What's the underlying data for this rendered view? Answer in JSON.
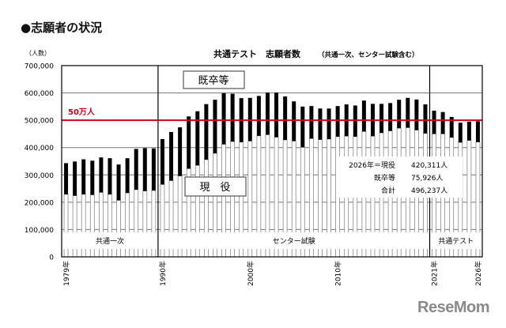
{
  "heading": "●志願者の状況",
  "logo_text": "ReseMom",
  "chart_data": {
    "type": "bar",
    "stacked": true,
    "title": "共通テスト　志願者数",
    "subtitle": "（共通一次、センター試験含む）",
    "ylabel": "（人数）",
    "ylim": [
      0,
      700000
    ],
    "yticks": [
      "0",
      "100,000",
      "200,000",
      "300,000",
      "400,000",
      "500,000",
      "600,000",
      "700,000"
    ],
    "grid": true,
    "years": [
      1979,
      1980,
      1981,
      1982,
      1983,
      1984,
      1985,
      1986,
      1987,
      1988,
      1989,
      1990,
      1991,
      1992,
      1993,
      1994,
      1995,
      1996,
      1997,
      1998,
      1999,
      2000,
      2001,
      2002,
      2003,
      2004,
      2005,
      2006,
      2007,
      2008,
      2009,
      2010,
      2011,
      2012,
      2013,
      2014,
      2015,
      2016,
      2017,
      2018,
      2019,
      2020,
      2021,
      2022,
      2023,
      2024,
      2025,
      2026
    ],
    "xtick_labels": [
      "1979年",
      "1990年",
      "2000年",
      "2010年",
      "2021年",
      "2026年"
    ],
    "series": [
      {
        "name": "現役",
        "color": "#ffffff",
        "values": [
          229000,
          224000,
          229000,
          227000,
          236000,
          229000,
          207000,
          234000,
          246000,
          241000,
          243000,
          265000,
          279000,
          296000,
          323000,
          335000,
          356000,
          379000,
          412000,
          422000,
          420000,
          424000,
          443000,
          447000,
          438000,
          428000,
          424000,
          401000,
          433000,
          429000,
          431000,
          440000,
          442000,
          440000,
          459000,
          442000,
          454000,
          461000,
          471000,
          473000,
          464000,
          452000,
          450000,
          450000,
          437000,
          419000,
          426000,
          420311
        ]
      },
      {
        "name": "既卒等",
        "color": "#000000",
        "values": [
          114000,
          125000,
          128000,
          125000,
          128000,
          132000,
          131000,
          127000,
          149000,
          157000,
          154000,
          166000,
          178000,
          178000,
          191000,
          198000,
          203000,
          196000,
          187000,
          175000,
          161000,
          158000,
          146000,
          154000,
          163000,
          159000,
          145000,
          149000,
          119000,
          114000,
          112000,
          112000,
          116000,
          114000,
          113000,
          118000,
          106000,
          102000,
          104000,
          109000,
          112000,
          106000,
          85000,
          80000,
          75000,
          72000,
          69000,
          75926
        ]
      }
    ],
    "reference_line": {
      "value": 500000,
      "label": "50万人",
      "color": "#d0021b"
    },
    "periods": [
      {
        "label": "共通一次",
        "from": 1979,
        "to": 1989
      },
      {
        "label": "センター試験",
        "from": 1990,
        "to": 2020
      },
      {
        "label": "共通テスト",
        "from": 2021,
        "to": 2026
      }
    ],
    "annotations": {
      "top_label": "既卒等",
      "bottom_label": "現　役",
      "summary": [
        "2026年＝現役",
        "420,311人",
        "既卒等",
        "75,926人",
        "合計",
        "496,237人"
      ]
    }
  }
}
